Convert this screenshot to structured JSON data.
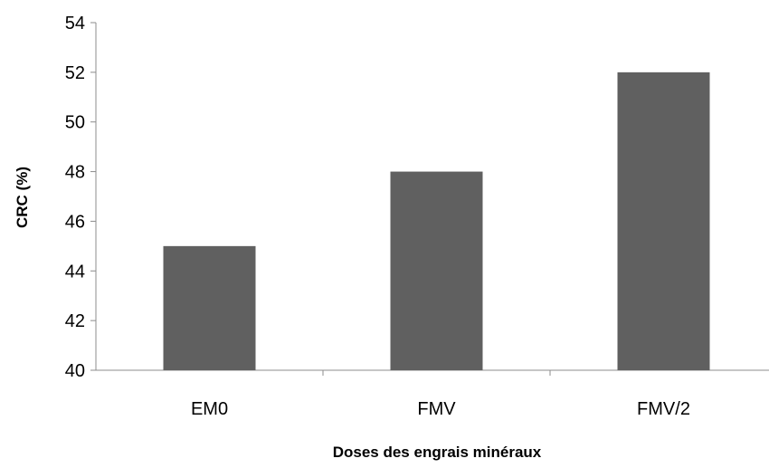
{
  "chart_data": {
    "type": "bar",
    "categories": [
      "EM0",
      "FMV",
      "FMV/2"
    ],
    "values": [
      45,
      48,
      52
    ],
    "xlabel": "Doses des engrais minéraux",
    "ylabel": "CRC (%)",
    "ylim": [
      40,
      54
    ],
    "yticks": [
      40,
      42,
      44,
      46,
      48,
      50,
      52,
      54
    ],
    "bar_color": "#606060",
    "axis_color": "#8c8c8c",
    "grid": false,
    "legend": "none"
  }
}
